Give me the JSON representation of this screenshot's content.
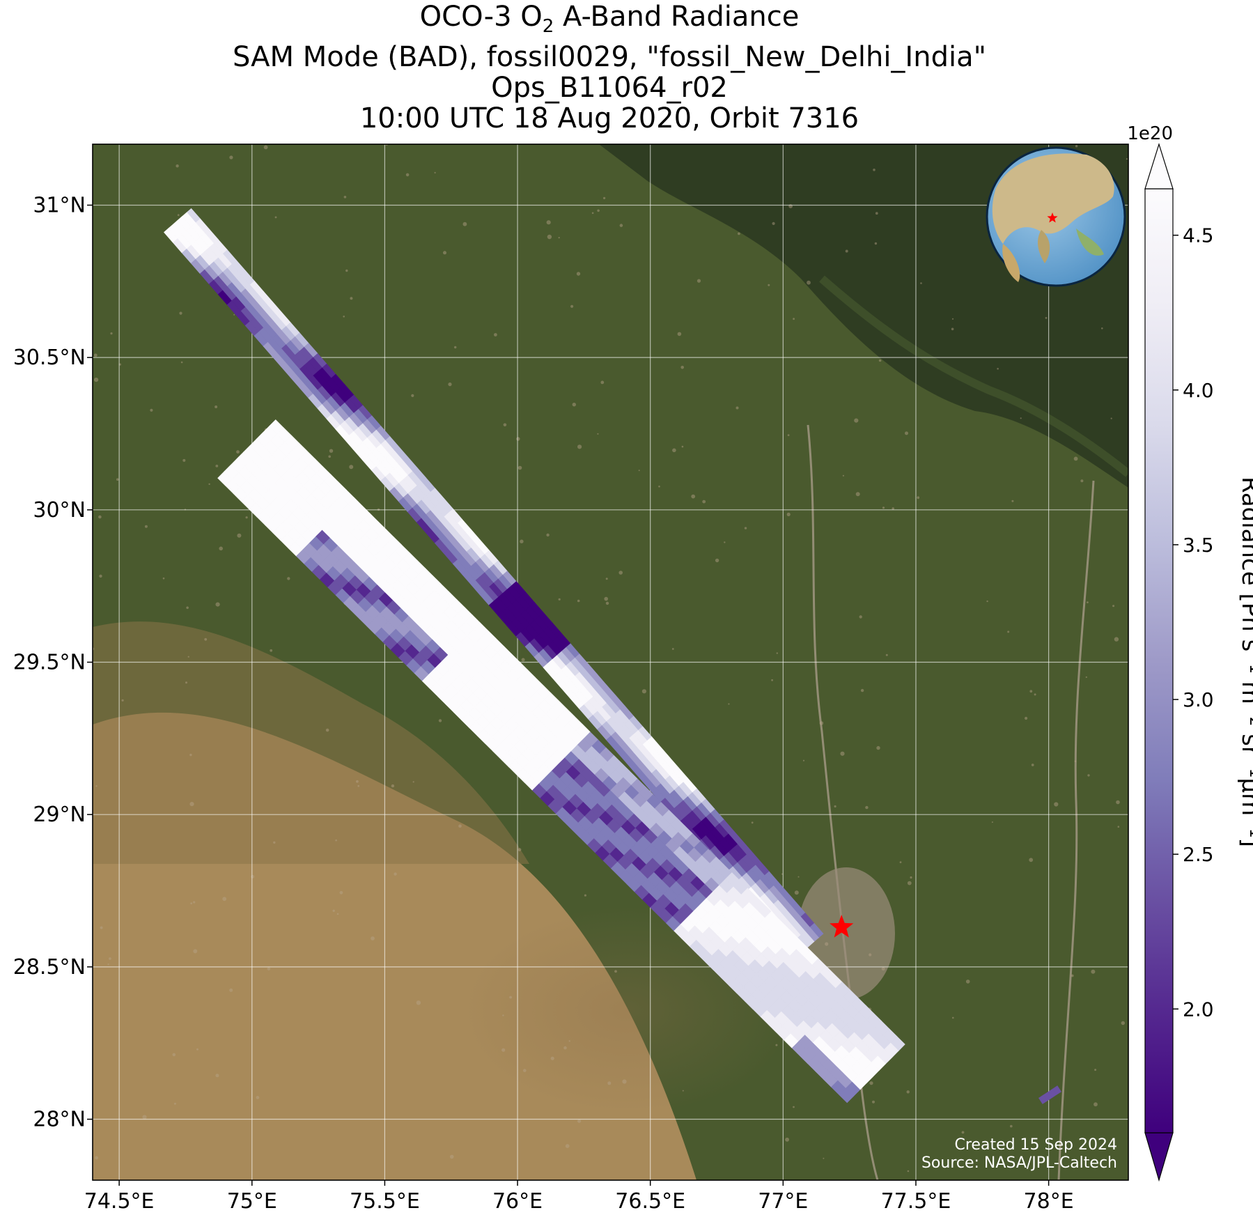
{
  "title": {
    "line1_prefix": "OCO-3 O",
    "line1_sub": "2",
    "line1_suffix": " A-Band Radiance",
    "line2": "SAM Mode (BAD), fossil0029, \"fossil_New_Delhi_India\"",
    "line3": "Ops_B11064_r02",
    "line4": "10:00 UTC 18 Aug 2020, Orbit 7316"
  },
  "map": {
    "region": "fossil_New_Delhi_India",
    "lon_range": [
      74.4,
      78.3
    ],
    "lat_range": [
      27.8,
      31.2
    ],
    "lon_ticks": [
      {
        "value": 74.5,
        "label": "74.5°E"
      },
      {
        "value": 75.0,
        "label": "75°E"
      },
      {
        "value": 75.5,
        "label": "75.5°E"
      },
      {
        "value": 76.0,
        "label": "76°E"
      },
      {
        "value": 76.5,
        "label": "76.5°E"
      },
      {
        "value": 77.0,
        "label": "77°E"
      },
      {
        "value": 77.5,
        "label": "77.5°E"
      },
      {
        "value": 78.0,
        "label": "78°E"
      }
    ],
    "lat_ticks": [
      {
        "value": 31.0,
        "label": "31°N"
      },
      {
        "value": 30.5,
        "label": "30.5°N"
      },
      {
        "value": 30.0,
        "label": "30°N"
      },
      {
        "value": 29.5,
        "label": "29.5°N"
      },
      {
        "value": 29.0,
        "label": "29°N"
      },
      {
        "value": 28.5,
        "label": "28.5°N"
      },
      {
        "value": 28.0,
        "label": "28°N"
      }
    ],
    "gridlines": true,
    "target": {
      "name": "New Delhi",
      "lon": 77.22,
      "lat": 28.63,
      "marker": "red-star"
    },
    "inset_globe": {
      "position": "top-right",
      "marker": "red-star"
    },
    "basemap_colors": {
      "vegetation": "#4a5a2e",
      "arid": "#a88a5a",
      "himalaya": "#2f3d22",
      "settlement": "#9a8c7a"
    }
  },
  "swaths": [
    {
      "name": "upper-swath",
      "lon_start": 74.72,
      "lat_start": 30.95,
      "lon_end": 77.1,
      "lat_end": 28.57
    },
    {
      "name": "lower-swath",
      "lon_start": 74.98,
      "lat_start": 30.2,
      "lon_end": 77.35,
      "lat_end": 28.15
    },
    {
      "name": "small-fragment",
      "lon_start": 77.97,
      "lat_start": 28.06,
      "lon_end": 78.04,
      "lat_end": 28.1
    }
  ],
  "colorbar": {
    "label": "Radiance [Ph s⁻¹ m⁻² sr⁻¹μm⁻¹]",
    "offset_text": "1e20",
    "colormap": "Purples_r",
    "vmin": 1.6,
    "vmax": 4.65,
    "extend": "both",
    "ticks": [
      {
        "value": 2.0,
        "label": "2.0"
      },
      {
        "value": 2.5,
        "label": "2.5"
      },
      {
        "value": 3.0,
        "label": "3.0"
      },
      {
        "value": 3.5,
        "label": "3.5"
      },
      {
        "value": 4.0,
        "label": "4.0"
      },
      {
        "value": 4.5,
        "label": "4.5"
      }
    ],
    "colors": [
      "#3f007d",
      "#54278f",
      "#6a51a3",
      "#807dba",
      "#9e9ac8",
      "#bcbddc",
      "#dadaeb",
      "#efedf5",
      "#fcfbfd"
    ]
  },
  "credits": {
    "created": "Created 15 Sep 2024",
    "source": "Source: NASA/JPL-Caltech"
  }
}
